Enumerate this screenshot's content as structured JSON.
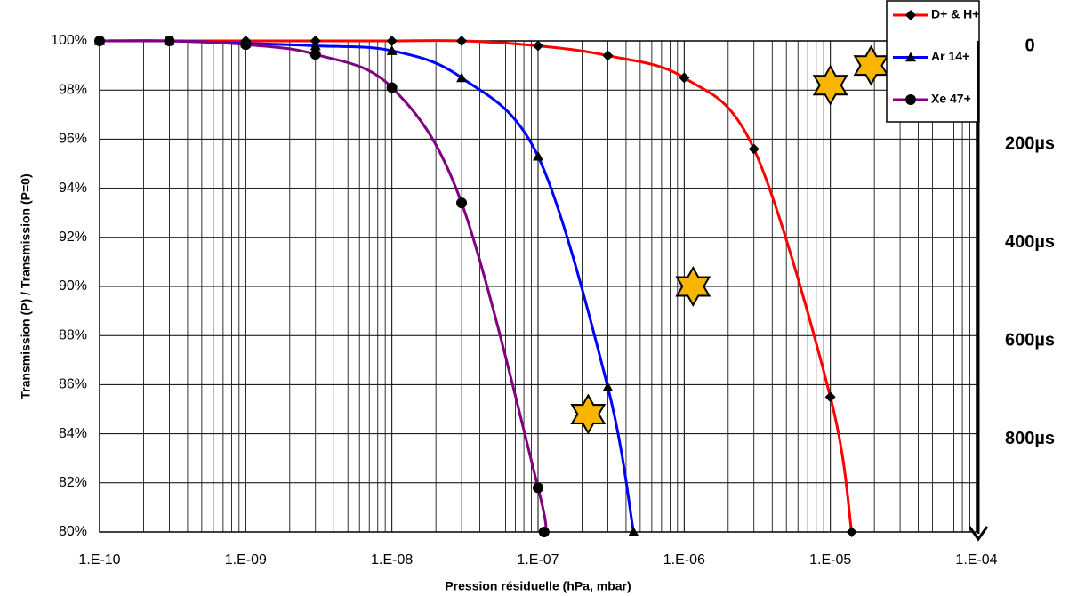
{
  "chart_data": {
    "type": "line",
    "x_label": "Pression résiduelle (hPa, mbar)",
    "y_label": "Transmission (P) / Transmission (P=0)",
    "log_x": true,
    "grid": true,
    "legend": "upper right",
    "xlim": [
      1e-10,
      0.0001
    ],
    "xticks": [
      {
        "value": 1e-10,
        "label": "1.E-10"
      },
      {
        "value": 1e-09,
        "label": "1.E-09"
      },
      {
        "value": 1e-08,
        "label": "1.E-08"
      },
      {
        "value": 1e-07,
        "label": "1.E-07"
      },
      {
        "value": 1e-06,
        "label": "1.E-06"
      },
      {
        "value": 1e-05,
        "label": "1.E-05"
      },
      {
        "value": 0.0001,
        "label": "1.E-04"
      }
    ],
    "ylim": [
      80,
      100
    ],
    "yticks": [
      {
        "value": 80,
        "label": "80%"
      },
      {
        "value": 82,
        "label": "82%"
      },
      {
        "value": 84,
        "label": "84%"
      },
      {
        "value": 86,
        "label": "86%"
      },
      {
        "value": 88,
        "label": "88%"
      },
      {
        "value": 90,
        "label": "90%"
      },
      {
        "value": 92,
        "label": "92%"
      },
      {
        "value": 94,
        "label": "94%"
      },
      {
        "value": 96,
        "label": "96%"
      },
      {
        "value": 98,
        "label": "98%"
      },
      {
        "value": 100,
        "label": "100%"
      }
    ],
    "y2lim": [
      0,
      1000
    ],
    "y2ticks": [
      {
        "value": 0,
        "label": "0"
      },
      {
        "value": 200,
        "label": "200µs"
      },
      {
        "value": 400,
        "label": "400µs"
      },
      {
        "value": 600,
        "label": "600µs"
      },
      {
        "value": 800,
        "label": "800µs"
      }
    ],
    "series": [
      {
        "name": "D+ & H+",
        "color": "#ff0000",
        "marker": "diamond",
        "x": [
          1e-10,
          3e-10,
          1e-09,
          3e-09,
          1e-08,
          3e-08,
          1e-07,
          3e-07,
          1e-06,
          3e-06,
          1e-05,
          1.4e-05
        ],
        "values": [
          100,
          100,
          100,
          100,
          100,
          100,
          99.8,
          99.4,
          98.5,
          95.6,
          85.5,
          80
        ]
      },
      {
        "name": "Ar 14+",
        "color": "#0000ff",
        "marker": "triangle",
        "x": [
          1e-10,
          3e-10,
          1e-09,
          3e-09,
          1e-08,
          3e-08,
          1e-07,
          3e-07,
          4.5e-07
        ],
        "values": [
          100,
          100,
          99.9,
          99.8,
          99.6,
          98.5,
          95.3,
          85.9,
          80
        ]
      },
      {
        "name": "Xe 47+",
        "color": "#800080",
        "marker": "circle",
        "x": [
          1e-10,
          3e-10,
          1e-09,
          3e-09,
          1e-08,
          3e-08,
          1e-07,
          1.1e-07
        ],
        "values": [
          100,
          100,
          99.85,
          99.45,
          98.1,
          93.4,
          81.8,
          80
        ]
      }
    ],
    "highlights": {
      "color": "#f7b500",
      "x": [
        2.2e-07,
        1.15e-06,
        1e-05,
        1.9e-05
      ],
      "values": [
        84.8,
        90,
        98.2,
        99
      ]
    }
  }
}
